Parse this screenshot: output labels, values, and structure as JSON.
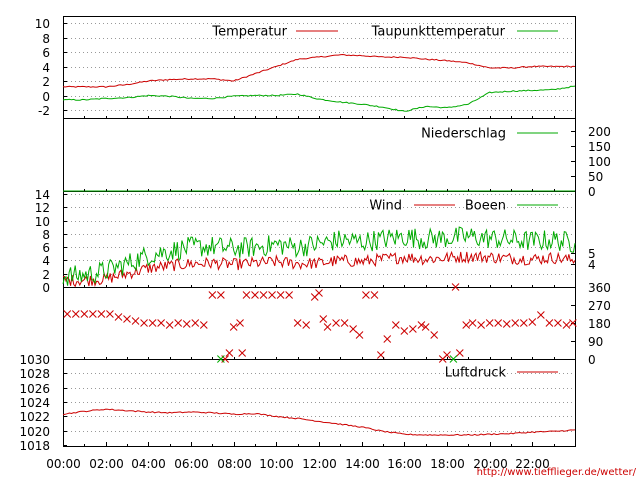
{
  "colors": {
    "red": "#cc0000",
    "green": "#00aa00",
    "grid": "#999999",
    "axis": "#000000",
    "credit": "#cc0000"
  },
  "credit": "http://www.tiefflieger.de/wetter/",
  "chart_data": [
    {
      "id": "temperature",
      "type": "line",
      "ylim": [
        -3,
        11
      ],
      "yticks": [
        "10",
        "8",
        "6",
        "4",
        "2",
        "0",
        "-2"
      ],
      "ytick_values": [
        10,
        8,
        6,
        4,
        2,
        0,
        -2
      ],
      "grid": "horizontal dotted",
      "legend": "top",
      "series": [
        {
          "name": "Temperatur",
          "color": "red",
          "points": [
            [
              0,
              1.2
            ],
            [
              1,
              1.2
            ],
            [
              2,
              1.2
            ],
            [
              3,
              1.5
            ],
            [
              4,
              2.0
            ],
            [
              5,
              2.2
            ],
            [
              6,
              2.3
            ],
            [
              7,
              2.3
            ],
            [
              8,
              2.0
            ],
            [
              9,
              3.0
            ],
            [
              10,
              4.0
            ],
            [
              11,
              5.0
            ],
            [
              12,
              5.3
            ],
            [
              13,
              5.6
            ],
            [
              14,
              5.5
            ],
            [
              15,
              5.3
            ],
            [
              16,
              5.3
            ],
            [
              17,
              5.0
            ],
            [
              18,
              4.8
            ],
            [
              19,
              4.5
            ],
            [
              20,
              3.8
            ],
            [
              21,
              3.8
            ],
            [
              22,
              4.0
            ],
            [
              23,
              4.0
            ],
            [
              24,
              4.0
            ]
          ]
        },
        {
          "name": "Taupunkttemperatur",
          "color": "green",
          "points": [
            [
              0,
              -0.6
            ],
            [
              1,
              -0.6
            ],
            [
              2,
              -0.4
            ],
            [
              3,
              -0.3
            ],
            [
              4,
              0.0
            ],
            [
              5,
              -0.1
            ],
            [
              6,
              -0.4
            ],
            [
              7,
              -0.4
            ],
            [
              8,
              -0.1
            ],
            [
              9,
              0.0
            ],
            [
              10,
              0.0
            ],
            [
              11,
              0.2
            ],
            [
              12,
              -0.5
            ],
            [
              13,
              -0.9
            ],
            [
              14,
              -1.2
            ],
            [
              15,
              -1.6
            ],
            [
              16,
              -2.2
            ],
            [
              17,
              -1.5
            ],
            [
              18,
              -1.7
            ],
            [
              19,
              -1.2
            ],
            [
              20,
              0.4
            ],
            [
              21,
              0.6
            ],
            [
              22,
              0.7
            ],
            [
              23,
              0.8
            ],
            [
              24,
              1.3
            ]
          ]
        }
      ]
    },
    {
      "id": "precipitation",
      "type": "line",
      "ylim": [
        0,
        230
      ],
      "yticks_right": [
        "200",
        "150",
        "100",
        "50",
        "0"
      ],
      "ytick_values": [
        200,
        150,
        100,
        50,
        0
      ],
      "legend": "top",
      "series": [
        {
          "name": "Niederschlag",
          "color": "green",
          "points": [
            [
              0,
              0
            ],
            [
              24,
              0
            ]
          ]
        }
      ]
    },
    {
      "id": "wind",
      "type": "line",
      "ylim": [
        0,
        14
      ],
      "yticks": [
        "14",
        "12",
        "10",
        "8",
        "6",
        "4",
        "2",
        "0"
      ],
      "ytick_values": [
        14,
        12,
        10,
        8,
        6,
        4,
        2,
        0
      ],
      "yticks_right": [
        "5",
        "4"
      ],
      "ytick_right_values": [
        5.1,
        3.4
      ],
      "grid": "horizontal dotted",
      "legend": "top",
      "series": [
        {
          "name": "Wind",
          "color": "red",
          "points": [
            [
              0,
              1.0
            ],
            [
              1,
              1.0
            ],
            [
              2,
              1.2
            ],
            [
              3,
              2.0
            ],
            [
              4,
              2.8
            ],
            [
              5,
              3.2
            ],
            [
              6,
              3.5
            ],
            [
              7,
              3.6
            ],
            [
              8,
              3.4
            ],
            [
              9,
              3.6
            ],
            [
              10,
              3.8
            ],
            [
              11,
              3.5
            ],
            [
              12,
              3.6
            ],
            [
              13,
              4.0
            ],
            [
              14,
              3.8
            ],
            [
              15,
              4.2
            ],
            [
              16,
              4.5
            ],
            [
              17,
              4.2
            ],
            [
              18,
              4.4
            ],
            [
              19,
              4.6
            ],
            [
              20,
              4.5
            ],
            [
              21,
              4.3
            ],
            [
              22,
              4.2
            ],
            [
              23,
              4.4
            ],
            [
              24,
              4.0
            ]
          ]
        },
        {
          "name": "Boeen",
          "color": "green",
          "points": [
            [
              0,
              1.6
            ],
            [
              1,
              1.8
            ],
            [
              2,
              2.4
            ],
            [
              3,
              3.5
            ],
            [
              4,
              4.8
            ],
            [
              5,
              5.4
            ],
            [
              6,
              6.0
            ],
            [
              7,
              6.1
            ],
            [
              8,
              5.8
            ],
            [
              9,
              6.0
            ],
            [
              10,
              6.4
            ],
            [
              11,
              6.0
            ],
            [
              12,
              6.5
            ],
            [
              13,
              7.1
            ],
            [
              14,
              6.8
            ],
            [
              15,
              7.2
            ],
            [
              16,
              7.6
            ],
            [
              17,
              7.2
            ],
            [
              18,
              7.4
            ],
            [
              19,
              7.6
            ],
            [
              20,
              7.3
            ],
            [
              21,
              7.1
            ],
            [
              22,
              6.9
            ],
            [
              23,
              7.1
            ],
            [
              24,
              6.6
            ]
          ]
        }
      ]
    },
    {
      "id": "wind_direction",
      "type": "scatter",
      "ylim": [
        0,
        360
      ],
      "yticks_right": [
        "360",
        "270",
        "180",
        "90",
        "0"
      ],
      "ytick_values": [
        360,
        270,
        180,
        90,
        0
      ],
      "series": [
        {
          "color": "red",
          "points": [
            [
              0.2,
              225
            ],
            [
              0.6,
              225
            ],
            [
              1.0,
              225
            ],
            [
              1.4,
              225
            ],
            [
              1.8,
              225
            ],
            [
              2.2,
              225
            ],
            [
              2.6,
              210
            ],
            [
              3.0,
              200
            ],
            [
              3.4,
              190
            ],
            [
              3.8,
              180
            ],
            [
              4.2,
              180
            ],
            [
              4.6,
              180
            ],
            [
              5.0,
              170
            ],
            [
              5.4,
              180
            ],
            [
              5.8,
              175
            ],
            [
              6.2,
              180
            ],
            [
              6.6,
              170
            ],
            [
              7.0,
              320
            ],
            [
              7.4,
              320
            ],
            [
              7.6,
              0
            ],
            [
              7.8,
              30
            ],
            [
              8.0,
              160
            ],
            [
              8.3,
              180
            ],
            [
              8.4,
              30
            ],
            [
              8.6,
              320
            ],
            [
              9.0,
              320
            ],
            [
              9.4,
              320
            ],
            [
              9.8,
              320
            ],
            [
              10.2,
              320
            ],
            [
              10.6,
              320
            ],
            [
              11.0,
              180
            ],
            [
              11.4,
              170
            ],
            [
              11.8,
              310
            ],
            [
              12.0,
              330
            ],
            [
              12.2,
              200
            ],
            [
              12.4,
              160
            ],
            [
              12.8,
              180
            ],
            [
              13.2,
              180
            ],
            [
              13.6,
              150
            ],
            [
              13.9,
              120
            ],
            [
              14.2,
              320
            ],
            [
              14.6,
              320
            ],
            [
              14.9,
              20
            ],
            [
              15.2,
              100
            ],
            [
              15.6,
              170
            ],
            [
              16.0,
              140
            ],
            [
              16.4,
              150
            ],
            [
              16.8,
              170
            ],
            [
              17.0,
              160
            ],
            [
              17.4,
              120
            ],
            [
              17.8,
              0
            ],
            [
              18.0,
              20
            ],
            [
              18.4,
              360
            ],
            [
              18.6,
              30
            ],
            [
              18.9,
              170
            ],
            [
              19.2,
              180
            ],
            [
              19.6,
              170
            ],
            [
              20.0,
              180
            ],
            [
              20.4,
              180
            ],
            [
              20.8,
              175
            ],
            [
              21.2,
              180
            ],
            [
              21.6,
              180
            ],
            [
              22.0,
              185
            ],
            [
              22.4,
              220
            ],
            [
              22.8,
              180
            ],
            [
              23.2,
              180
            ],
            [
              23.6,
              170
            ],
            [
              23.9,
              180
            ]
          ]
        },
        {
          "color": "green",
          "points": [
            [
              7.4,
              0
            ],
            [
              18.3,
              0
            ]
          ]
        }
      ]
    },
    {
      "id": "pressure",
      "type": "line",
      "ylim": [
        1018,
        1030
      ],
      "yticks": [
        "1030",
        "1028",
        "1026",
        "1024",
        "1022",
        "1020",
        "1018"
      ],
      "ytick_values": [
        1030,
        1028,
        1026,
        1024,
        1022,
        1020,
        1018
      ],
      "grid": "horizontal dotted",
      "legend": "top",
      "xticks": [
        "00:00",
        "02:00",
        "04:00",
        "06:00",
        "08:00",
        "10:00",
        "12:00",
        "14:00",
        "16:00",
        "18:00",
        "20:00",
        "22:00"
      ],
      "xtick_values": [
        0,
        2,
        4,
        6,
        8,
        10,
        12,
        14,
        16,
        18,
        20,
        22
      ],
      "xlim": [
        0,
        24
      ],
      "series": [
        {
          "name": "Luftdruck",
          "color": "red",
          "points": [
            [
              0,
              1022.3
            ],
            [
              1,
              1022.7
            ],
            [
              2,
              1023.0
            ],
            [
              3,
              1022.8
            ],
            [
              4,
              1022.6
            ],
            [
              5,
              1022.5
            ],
            [
              6,
              1022.6
            ],
            [
              7,
              1022.5
            ],
            [
              8,
              1022.3
            ],
            [
              9,
              1022.4
            ],
            [
              10,
              1022.0
            ],
            [
              11,
              1021.7
            ],
            [
              12,
              1021.3
            ],
            [
              13,
              1020.9
            ],
            [
              14,
              1020.5
            ],
            [
              15,
              1019.9
            ],
            [
              16,
              1019.5
            ],
            [
              17,
              1019.4
            ],
            [
              18,
              1019.4
            ],
            [
              19,
              1019.4
            ],
            [
              20,
              1019.5
            ],
            [
              21,
              1019.6
            ],
            [
              22,
              1019.8
            ],
            [
              23,
              1019.9
            ],
            [
              24,
              1020.1
            ]
          ]
        }
      ]
    }
  ]
}
